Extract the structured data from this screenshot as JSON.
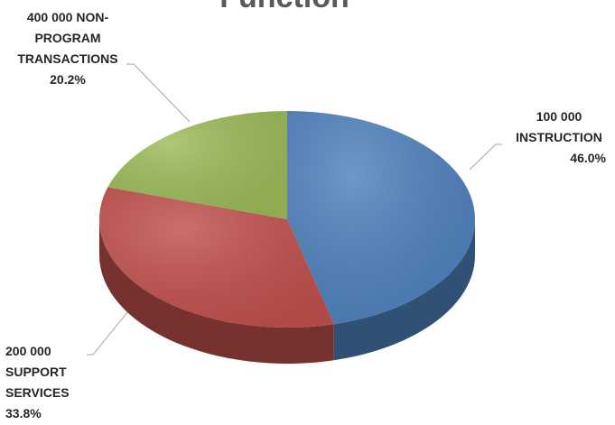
{
  "chart_data": {
    "type": "pie",
    "title": "Function",
    "slices": [
      {
        "lines": [
          "100 000",
          "INSTRUCTION"
        ],
        "percent_label": "46.0%",
        "value": 46.0,
        "color": "#4F81BD"
      },
      {
        "lines": [
          "200 000",
          "SUPPORT",
          "SERVICES"
        ],
        "percent_label": "33.8%",
        "value": 33.8,
        "color": "#C0504D"
      },
      {
        "lines": [
          "400 000 NON-",
          "PROGRAM",
          "TRANSACTIONS"
        ],
        "percent_label": "20.2%",
        "value": 20.2,
        "color": "#9BBB59"
      }
    ],
    "legend": "none",
    "style": "3d"
  }
}
